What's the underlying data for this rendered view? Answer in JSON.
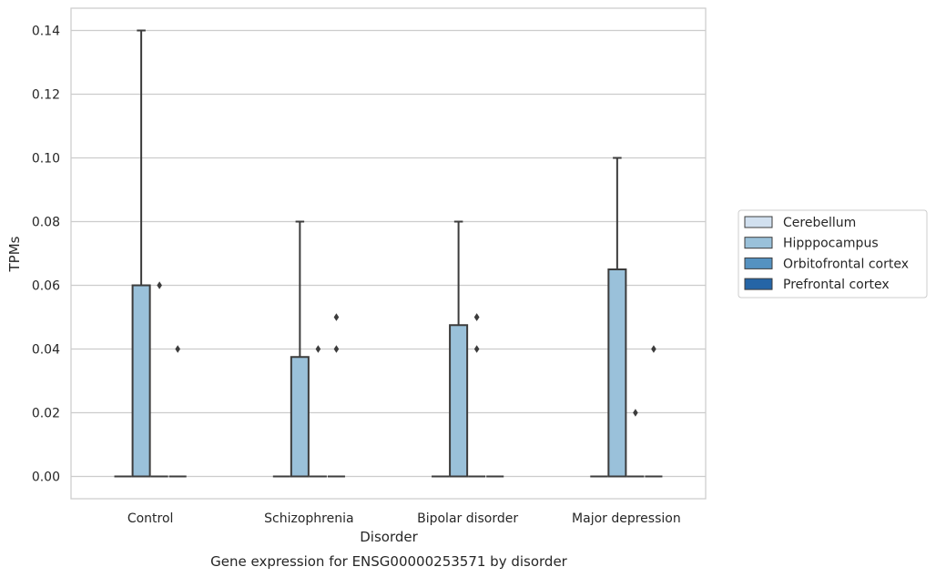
{
  "chart_data": {
    "type": "box",
    "xlabel": "Disorder",
    "ylabel": "TPMs",
    "caption": "Gene expression for ENSG00000253571 by disorder",
    "categories": [
      "Control",
      "Schizophrenia",
      "Bipolar disorder",
      "Major depression"
    ],
    "ylim": [
      -0.007,
      0.147
    ],
    "yticks": [
      0.0,
      0.02,
      0.04,
      0.06,
      0.08,
      0.1,
      0.12,
      0.14
    ],
    "ytick_labels": [
      "0.00",
      "0.02",
      "0.04",
      "0.06",
      "0.08",
      "0.10",
      "0.12",
      "0.14"
    ],
    "grid": true,
    "legend_position": "outside-right",
    "series": [
      {
        "name": "Cerebellum",
        "color": "#d1e0ef",
        "boxes": [
          {
            "category": "Control",
            "min": 0,
            "q1": 0,
            "median": 0,
            "q3": 0,
            "max": 0,
            "outliers": []
          },
          {
            "category": "Schizophrenia",
            "min": 0,
            "q1": 0,
            "median": 0,
            "q3": 0,
            "max": 0,
            "outliers": []
          },
          {
            "category": "Bipolar disorder",
            "min": 0,
            "q1": 0,
            "median": 0,
            "q3": 0,
            "max": 0,
            "outliers": []
          },
          {
            "category": "Major depression",
            "min": 0,
            "q1": 0,
            "median": 0,
            "q3": 0,
            "max": 0,
            "outliers": []
          }
        ]
      },
      {
        "name": "Hipppocampus",
        "color": "#9ac1da",
        "boxes": [
          {
            "category": "Control",
            "min": 0,
            "q1": 0,
            "median": 0,
            "q3": 0.06,
            "max": 0.14,
            "outliers": []
          },
          {
            "category": "Schizophrenia",
            "min": 0,
            "q1": 0,
            "median": 0,
            "q3": 0.0375,
            "max": 0.08,
            "outliers": []
          },
          {
            "category": "Bipolar disorder",
            "min": 0,
            "q1": 0,
            "median": 0,
            "q3": 0.0475,
            "max": 0.08,
            "outliers": []
          },
          {
            "category": "Major depression",
            "min": 0,
            "q1": 0,
            "median": 0,
            "q3": 0.065,
            "max": 0.1,
            "outliers": []
          }
        ]
      },
      {
        "name": "Orbitofrontal cortex",
        "color": "#5592c1",
        "boxes": [
          {
            "category": "Control",
            "min": 0,
            "q1": 0,
            "median": 0,
            "q3": 0,
            "max": 0,
            "outliers": [
              0.06
            ]
          },
          {
            "category": "Schizophrenia",
            "min": 0,
            "q1": 0,
            "median": 0,
            "q3": 0,
            "max": 0,
            "outliers": [
              0.04
            ]
          },
          {
            "category": "Bipolar disorder",
            "min": 0,
            "q1": 0,
            "median": 0,
            "q3": 0,
            "max": 0,
            "outliers": [
              0.04,
              0.05,
              0.05
            ]
          },
          {
            "category": "Major depression",
            "min": 0,
            "q1": 0,
            "median": 0,
            "q3": 0,
            "max": 0,
            "outliers": [
              0.02
            ]
          }
        ]
      },
      {
        "name": "Prefrontal cortex",
        "color": "#2565a6",
        "boxes": [
          {
            "category": "Control",
            "min": 0,
            "q1": 0,
            "median": 0,
            "q3": 0,
            "max": 0,
            "outliers": [
              0.04
            ]
          },
          {
            "category": "Schizophrenia",
            "min": 0,
            "q1": 0,
            "median": 0,
            "q3": 0,
            "max": 0,
            "outliers": [
              0.04,
              0.05
            ]
          },
          {
            "category": "Bipolar disorder",
            "min": 0,
            "q1": 0,
            "median": 0,
            "q3": 0,
            "max": 0,
            "outliers": []
          },
          {
            "category": "Major depression",
            "min": 0,
            "q1": 0,
            "median": 0,
            "q3": 0,
            "max": 0,
            "outliers": [
              0.04
            ]
          }
        ]
      }
    ]
  }
}
